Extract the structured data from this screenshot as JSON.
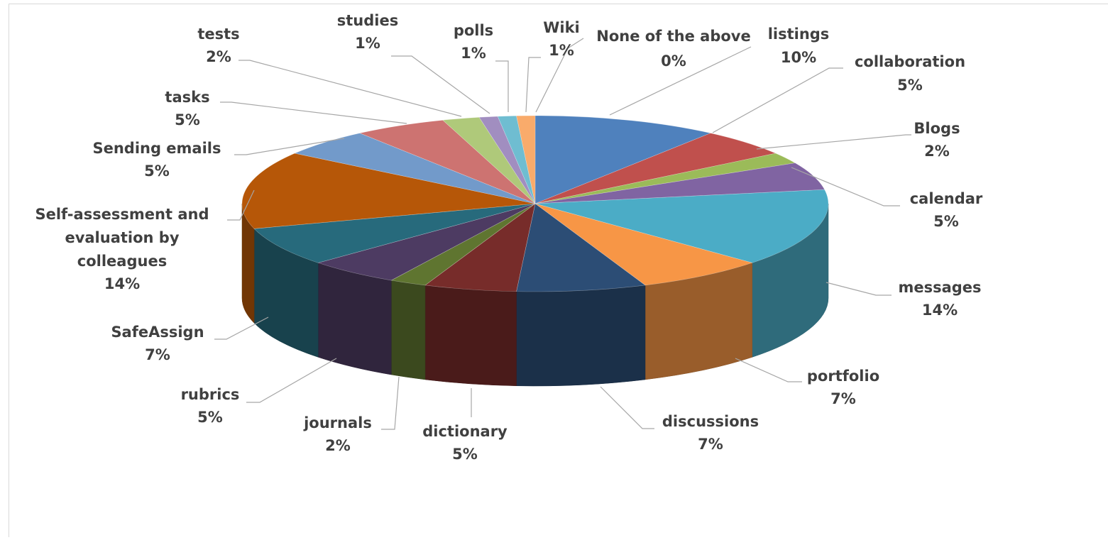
{
  "chart_data": {
    "type": "pie",
    "style": "3d-exploded-ellipse",
    "title": "",
    "slices": [
      {
        "label": "None of the above",
        "value": 0,
        "pct_label": "0%",
        "color": "#8c8c8c"
      },
      {
        "label": "listings",
        "value": 10,
        "pct_label": "10%",
        "color": "#4f81bd"
      },
      {
        "label": "collaboration",
        "value": 5,
        "pct_label": "5%",
        "color": "#c0504d"
      },
      {
        "label": "Blogs",
        "value": 2,
        "pct_label": "2%",
        "color": "#9bbb59"
      },
      {
        "label": "calendar",
        "value": 5,
        "pct_label": "5%",
        "color": "#8064a2"
      },
      {
        "label": "messages",
        "value": 14,
        "pct_label": "14%",
        "color": "#4bacc6"
      },
      {
        "label": "portfolio",
        "value": 7,
        "pct_label": "7%",
        "color": "#f79646"
      },
      {
        "label": "discussions",
        "value": 7,
        "pct_label": "7%",
        "color": "#2c4d75"
      },
      {
        "label": "dictionary",
        "value": 5,
        "pct_label": "5%",
        "color": "#772c2a"
      },
      {
        "label": "journals",
        "value": 2,
        "pct_label": "2%",
        "color": "#5f7530"
      },
      {
        "label": "rubrics",
        "value": 5,
        "pct_label": "5%",
        "color": "#4d3b62"
      },
      {
        "label": "SafeAssign",
        "value": 7,
        "pct_label": "7%",
        "color": "#276a7c"
      },
      {
        "label": "Self-assessment and evaluation by colleagues",
        "value": 14,
        "pct_label": "14%",
        "color": "#b65708"
      },
      {
        "label": "Sending emails",
        "value": 5,
        "pct_label": "5%",
        "color": "#729aca"
      },
      {
        "label": "tasks",
        "value": 5,
        "pct_label": "5%",
        "color": "#cd7371"
      },
      {
        "label": "tests",
        "value": 2,
        "pct_label": "2%",
        "color": "#afc97a"
      },
      {
        "label": "studies",
        "value": 1,
        "pct_label": "1%",
        "color": "#a18ec0"
      },
      {
        "label": "polls",
        "value": 1,
        "pct_label": "1%",
        "color": "#6fbdd1"
      },
      {
        "label": "Wiki",
        "value": 1,
        "pct_label": "1%",
        "color": "#f9ab6b"
      }
    ],
    "legend": "none",
    "data_labels": "outside-with-leader-lines"
  }
}
